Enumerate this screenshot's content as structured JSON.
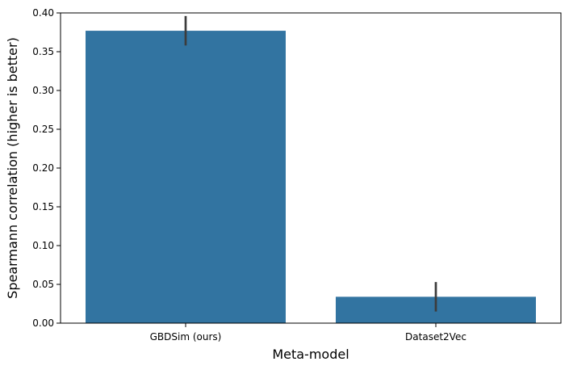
{
  "chart_data": {
    "type": "bar",
    "title": "",
    "xlabel": "Meta-model",
    "ylabel": "Spearmann correlation (higher is better)",
    "categories": [
      "GBDSim (ours)",
      "Dataset2Vec"
    ],
    "values": [
      0.377,
      0.034
    ],
    "error_low": [
      0.358,
      0.015
    ],
    "error_high": [
      0.396,
      0.053
    ],
    "ylim": [
      0,
      0.4
    ],
    "yticks": [
      0.0,
      0.05,
      0.1,
      0.15,
      0.2,
      0.25,
      0.3,
      0.35,
      0.4
    ],
    "ytick_labels": [
      "0.00",
      "0.05",
      "0.10",
      "0.15",
      "0.20",
      "0.25",
      "0.30",
      "0.35",
      "0.40"
    ],
    "grid": false,
    "bar_color": "#3274a1",
    "errorbar_color": "#3c3c3c"
  }
}
